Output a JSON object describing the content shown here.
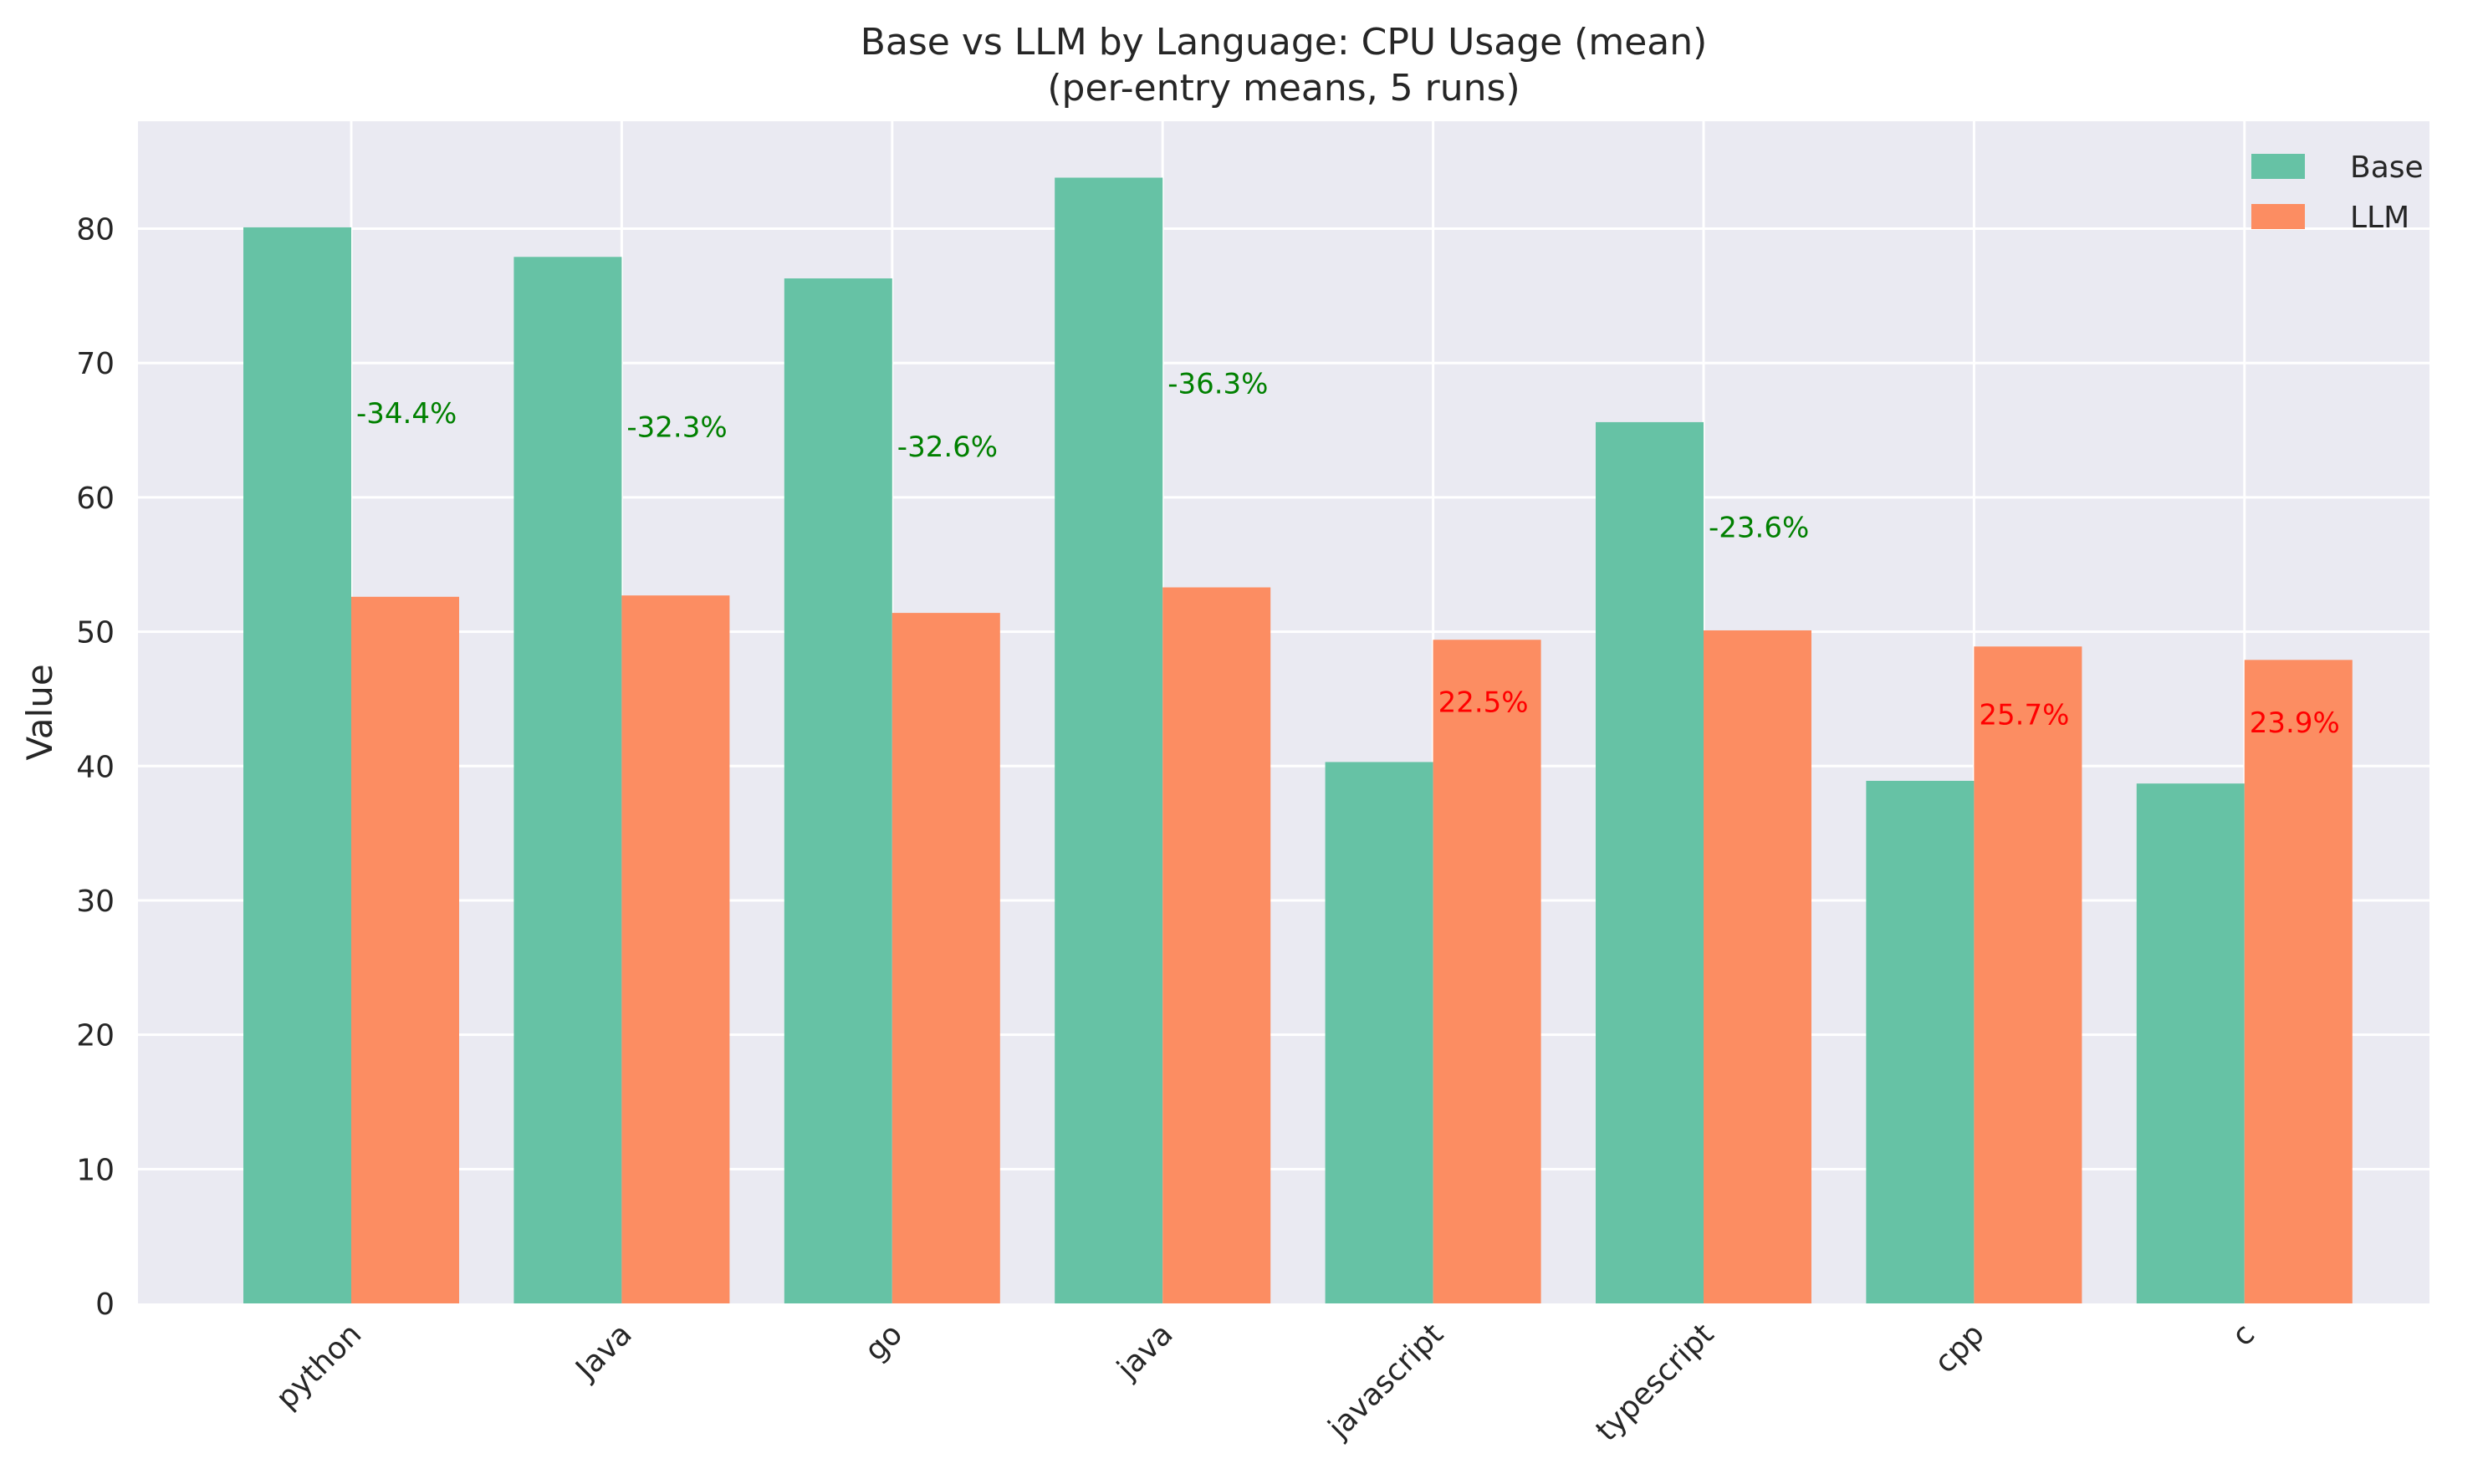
{
  "chart_data": {
    "type": "bar",
    "title_line1": "Base vs LLM by Language: CPU Usage (mean)",
    "title_line2": "(per-entry means, 5 runs)",
    "xlabel": "",
    "ylabel": "Value",
    "ylim": [
      0,
      88
    ],
    "yticks": [
      0,
      10,
      20,
      30,
      40,
      50,
      60,
      70,
      80
    ],
    "grid": true,
    "legend_position": "top-right",
    "categories": [
      "python",
      "Java",
      "go",
      "java",
      "javascript",
      "typescript",
      "cpp",
      "c"
    ],
    "series": [
      {
        "name": "Base",
        "color": "#66c2a5",
        "values": [
          80.1,
          77.9,
          76.3,
          83.8,
          40.3,
          65.6,
          38.9,
          38.7
        ]
      },
      {
        "name": "LLM",
        "color": "#fc8d62",
        "values": [
          52.6,
          52.7,
          51.4,
          53.3,
          49.4,
          50.1,
          48.9,
          47.9
        ]
      }
    ],
    "annotations": [
      {
        "text": "-34.4%",
        "color": "#008000"
      },
      {
        "text": "-32.3%",
        "color": "#008000"
      },
      {
        "text": "-32.6%",
        "color": "#008000"
      },
      {
        "text": "-36.3%",
        "color": "#008000"
      },
      {
        "text": "22.5%",
        "color": "#ff0000"
      },
      {
        "text": "-23.6%",
        "color": "#008000"
      },
      {
        "text": "25.7%",
        "color": "#ff0000"
      },
      {
        "text": "23.9%",
        "color": "#ff0000"
      }
    ],
    "plot_background": "#eaeaf2",
    "grid_color": "#ffffff"
  }
}
